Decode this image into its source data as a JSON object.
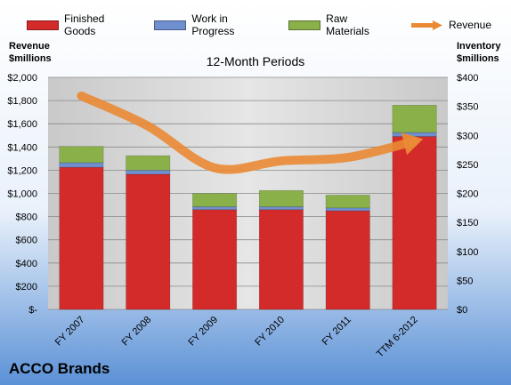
{
  "chart_data": {
    "type": "bar",
    "title": "12-Month Periods",
    "company": "ACCO Brands",
    "categories": [
      "FY 2007",
      "FY 2008",
      "FY 2009",
      "FY 2010",
      "FY 2011",
      "TTM 6-2012"
    ],
    "y_left_label": [
      "Revenue",
      "$millions"
    ],
    "y_right_label": [
      "Inventory",
      "$millions"
    ],
    "y_left_ticks": [
      "$-",
      "$200",
      "$400",
      "$600",
      "$800",
      "$1,000",
      "$1,200",
      "$1,400",
      "$1,600",
      "$1,800",
      "$2,000"
    ],
    "y_right_ticks": [
      "$0",
      "$50",
      "$100",
      "$150",
      "$200",
      "$250",
      "$300",
      "$350",
      "$400"
    ],
    "ylim_left": [
      0,
      2000
    ],
    "ylim_right": [
      0,
      400
    ],
    "stacked": true,
    "series": [
      {
        "name": "Finished Goods",
        "axis": "right",
        "color": "#d32a2a",
        "values": [
          245,
          233,
          172,
          172,
          170,
          298
        ]
      },
      {
        "name": "Work in Progress",
        "axis": "right",
        "color": "#6f8fcf",
        "values": [
          8,
          7,
          5,
          5,
          5,
          7
        ]
      },
      {
        "name": "Raw Materials",
        "axis": "right",
        "color": "#8ab04a",
        "values": [
          28,
          25,
          23,
          28,
          22,
          47
        ]
      },
      {
        "name": "Revenue",
        "type": "line",
        "axis": "left",
        "color": "#ea8a35",
        "values": [
          1840,
          1580,
          1220,
          1280,
          1310,
          1450
        ]
      }
    ],
    "legend": "top",
    "grid": true
  }
}
